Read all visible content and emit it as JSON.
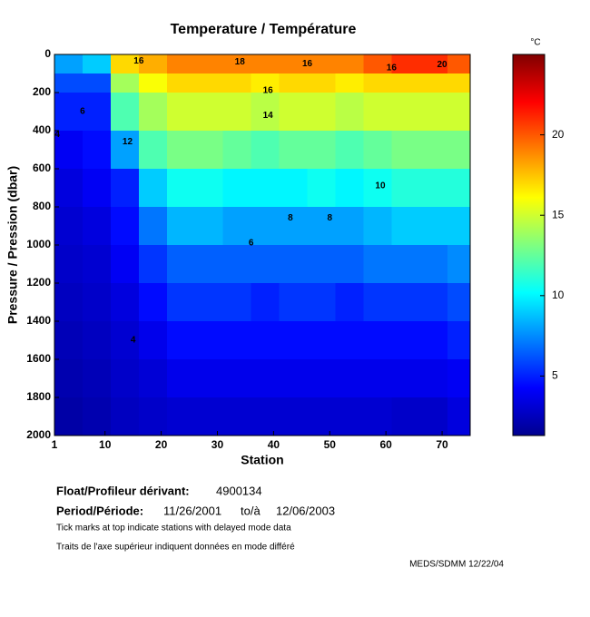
{
  "chart_data": {
    "type": "heatmap",
    "title": "Temperature / Température",
    "xlabel": "Station",
    "ylabel": "Pressure / Pression (dbar)",
    "xbins": [
      1,
      6,
      11,
      16,
      21,
      26,
      31,
      36,
      41,
      46,
      51,
      56,
      61,
      66,
      71,
      75
    ],
    "ybins": [
      0,
      100,
      200,
      400,
      600,
      800,
      1000,
      1200,
      1400,
      1600,
      1800,
      2000
    ],
    "values": [
      [
        8,
        9,
        17,
        18,
        19,
        19,
        19,
        19,
        19,
        19,
        19,
        20,
        21,
        21,
        20
      ],
      [
        6,
        6,
        14,
        16,
        17,
        17,
        17,
        16.5,
        17,
        17,
        16.5,
        17,
        17,
        17,
        17
      ],
      [
        5,
        5,
        12,
        14,
        15,
        15,
        15,
        14.5,
        15,
        15,
        14.5,
        15,
        15,
        15,
        15
      ],
      [
        4,
        4.5,
        8,
        12,
        13,
        13,
        12.5,
        12,
        12.5,
        12.5,
        12,
        12.5,
        13,
        13,
        13
      ],
      [
        3.5,
        4,
        5,
        9,
        10.5,
        10.5,
        10,
        10,
        10,
        10.5,
        10,
        10.5,
        11,
        11,
        11
      ],
      [
        3.2,
        3.5,
        4.5,
        7,
        8.5,
        8.5,
        8,
        8,
        8,
        8,
        8,
        8.5,
        9,
        9,
        9
      ],
      [
        3,
        3.2,
        4,
        5.5,
        6.5,
        6.5,
        6.5,
        6.5,
        6.5,
        6.5,
        6.5,
        7,
        7,
        7,
        7.5
      ],
      [
        2.8,
        3,
        3.5,
        4.5,
        5.5,
        5.5,
        5.5,
        5,
        5.5,
        5.5,
        5,
        5.5,
        5.5,
        5.5,
        6
      ],
      [
        2.6,
        2.8,
        3.2,
        3.8,
        4.5,
        4.5,
        4.5,
        4.5,
        4.5,
        4.5,
        4.5,
        4.5,
        4.5,
        4.5,
        5
      ],
      [
        2.4,
        2.6,
        3,
        3.3,
        3.8,
        3.8,
        3.8,
        3.8,
        3.8,
        3.8,
        3.8,
        3.8,
        3.8,
        3.8,
        4
      ],
      [
        2.2,
        2.4,
        2.8,
        3,
        3.2,
        3.2,
        3.2,
        3.2,
        3.2,
        3.2,
        3.2,
        3.2,
        3,
        3,
        3.5
      ]
    ],
    "xlim": [
      1,
      75
    ],
    "ylim": [
      0,
      2000
    ],
    "y_inverted": true,
    "xticks": [
      1,
      10,
      20,
      30,
      40,
      50,
      60,
      70
    ],
    "yticks": [
      0,
      200,
      400,
      600,
      800,
      1000,
      1200,
      1400,
      1600,
      1800,
      2000
    ],
    "colorbar": {
      "label": "°C",
      "lim": [
        1.3,
        25
      ],
      "ticks": [
        5,
        10,
        15,
        20
      ],
      "colormap": "jet"
    },
    "contour_labels": [
      {
        "value": 16,
        "x": 16,
        "y": 35
      },
      {
        "value": 18,
        "x": 34,
        "y": 40
      },
      {
        "value": 16,
        "x": 46,
        "y": 50
      },
      {
        "value": 16,
        "x": 61,
        "y": 70
      },
      {
        "value": 20,
        "x": 70,
        "y": 55
      },
      {
        "value": 16,
        "x": 39,
        "y": 190
      },
      {
        "value": 14,
        "x": 39,
        "y": 320
      },
      {
        "value": 12,
        "x": 14,
        "y": 460
      },
      {
        "value": 10,
        "x": 59,
        "y": 690
      },
      {
        "value": 8,
        "x": 43,
        "y": 860
      },
      {
        "value": 8,
        "x": 50,
        "y": 860
      },
      {
        "value": 6,
        "x": 36,
        "y": 990
      },
      {
        "value": 6,
        "x": 6,
        "y": 300
      },
      {
        "value": 4,
        "x": 1.5,
        "y": 420
      },
      {
        "value": 4,
        "x": 15,
        "y": 1500
      }
    ]
  },
  "info": {
    "float_label": "Float/Profileur dérivant:",
    "float_id": "4900134",
    "period_label": "Period/Période:",
    "start": "11/26/2001",
    "to_label": "to/à",
    "end": "12/06/2003",
    "notes": [
      "Tick marks at top indicate stations with delayed mode data",
      "Traits de l'axe supérieur indiquent données en mode différé"
    ],
    "credit": "MEDS/SDMM  12/22/04"
  }
}
